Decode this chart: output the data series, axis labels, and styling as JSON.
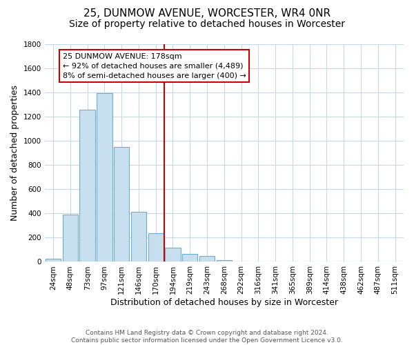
{
  "title": "25, DUNMOW AVENUE, WORCESTER, WR4 0NR",
  "subtitle": "Size of property relative to detached houses in Worcester",
  "xlabel": "Distribution of detached houses by size in Worcester",
  "ylabel": "Number of detached properties",
  "bar_labels": [
    "24sqm",
    "48sqm",
    "73sqm",
    "97sqm",
    "121sqm",
    "146sqm",
    "170sqm",
    "194sqm",
    "219sqm",
    "243sqm",
    "268sqm",
    "292sqm",
    "316sqm",
    "341sqm",
    "365sqm",
    "389sqm",
    "414sqm",
    "438sqm",
    "462sqm",
    "487sqm",
    "511sqm"
  ],
  "bar_values": [
    25,
    390,
    1260,
    1395,
    950,
    415,
    235,
    115,
    68,
    50,
    15,
    5,
    2,
    1,
    0,
    0,
    0,
    0,
    0,
    0,
    0
  ],
  "bar_color": "#c8dff0",
  "bar_edge_color": "#6aaed6",
  "reference_line_color": "#cc0000",
  "annotation_title": "25 DUNMOW AVENUE: 178sqm",
  "annotation_line1": "← 92% of detached houses are smaller (4,489)",
  "annotation_line2": "8% of semi-detached houses are larger (400) →",
  "annotation_box_color": "#ffffff",
  "annotation_box_edge_color": "#cc0000",
  "ylim": [
    0,
    1800
  ],
  "yticks": [
    0,
    200,
    400,
    600,
    800,
    1000,
    1200,
    1400,
    1600,
    1800
  ],
  "footer_line1": "Contains HM Land Registry data © Crown copyright and database right 2024.",
  "footer_line2": "Contains public sector information licensed under the Open Government Licence v3.0.",
  "bg_color": "#ffffff",
  "grid_color": "#c8d8ea",
  "title_fontsize": 11,
  "subtitle_fontsize": 10,
  "axis_label_fontsize": 9,
  "tick_fontsize": 7.5,
  "annotation_fontsize": 8,
  "footer_fontsize": 6.5
}
